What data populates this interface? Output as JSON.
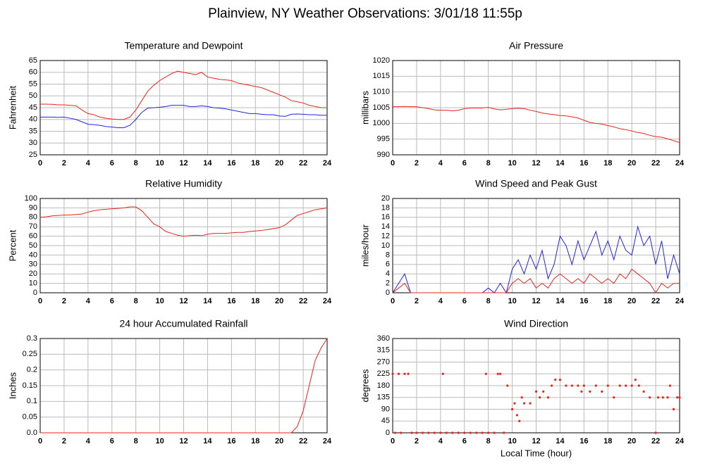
{
  "title": "Plainview, NY Weather Observations: 3/01/18 11:55p",
  "chart_data": [
    {
      "type": "line",
      "title": "Temperature and Dewpoint",
      "y_label": "Fahrenheit",
      "x": [
        0,
        0.5,
        1,
        1.5,
        2,
        2.5,
        3,
        3.5,
        4,
        4.5,
        5,
        5.5,
        6,
        6.5,
        7,
        7.5,
        8,
        8.5,
        9,
        9.5,
        10,
        10.5,
        11,
        11.5,
        12,
        12.5,
        13,
        13.5,
        14,
        14.5,
        15,
        15.5,
        16,
        16.5,
        17,
        17.5,
        18,
        18.5,
        19,
        19.5,
        20,
        20.5,
        21,
        21.5,
        22,
        22.5,
        23,
        23.5,
        24
      ],
      "series": [
        {
          "color": "#e8241c",
          "values": [
            46.5,
            46.5,
            46.4,
            46.2,
            46.2,
            46,
            45.8,
            44,
            42.5,
            42,
            41,
            40.5,
            40.2,
            40,
            40,
            41,
            44,
            48,
            52,
            54.5,
            56.5,
            58,
            59.5,
            60.5,
            60,
            59.5,
            59,
            60,
            58,
            57.5,
            57,
            56.8,
            56.5,
            55.5,
            55,
            54.5,
            54,
            53.5,
            52.5,
            51.5,
            50.5,
            49.5,
            48,
            47.5,
            47,
            46,
            45.5,
            45,
            45
          ]
        },
        {
          "color": "#2424d8",
          "values": [
            41,
            41,
            41,
            40.9,
            41,
            40.5,
            40,
            39,
            38,
            37.8,
            37.5,
            37,
            36.8,
            36.5,
            36.5,
            37.5,
            40,
            43,
            44.8,
            45,
            45.2,
            45.5,
            46,
            46,
            46,
            45.5,
            45.5,
            45.8,
            45.5,
            45,
            44.8,
            44.5,
            44,
            43.5,
            43,
            42.5,
            42.5,
            42.2,
            42,
            42,
            41.5,
            41.3,
            42.2,
            42.3,
            42.2,
            42,
            42,
            41.8,
            41.8
          ]
        }
      ],
      "xlim": [
        0,
        24
      ],
      "xticks": [
        0,
        2,
        4,
        6,
        8,
        10,
        12,
        14,
        16,
        18,
        20,
        22,
        24
      ],
      "ylim": [
        25,
        65
      ],
      "yticks": [
        25,
        30,
        35,
        40,
        45,
        50,
        55,
        60,
        65
      ],
      "grid": true
    },
    {
      "type": "line",
      "title": "Air Pressure",
      "y_label": "millibars",
      "x": [
        0,
        0.5,
        1,
        1.5,
        2,
        2.5,
        3,
        3.5,
        4,
        4.5,
        5,
        5.5,
        6,
        6.5,
        7,
        7.5,
        8,
        8.5,
        9,
        9.5,
        10,
        10.5,
        11,
        11.5,
        12,
        12.5,
        13,
        13.5,
        14,
        14.5,
        15,
        15.5,
        16,
        16.5,
        17,
        17.5,
        18,
        18.5,
        19,
        19.5,
        20,
        20.5,
        21,
        21.5,
        22,
        22.5,
        23,
        23.5,
        24
      ],
      "series": [
        {
          "color": "#e8241c",
          "values": [
            1005.3,
            1005.3,
            1005.4,
            1005.3,
            1005.3,
            1005,
            1004.7,
            1004.3,
            1004.2,
            1004.2,
            1004,
            1004.2,
            1004.7,
            1004.9,
            1004.9,
            1004.9,
            1005.1,
            1004.6,
            1004.3,
            1004.5,
            1004.7,
            1004.8,
            1004.7,
            1004.2,
            1003.8,
            1003.3,
            1003,
            1002.8,
            1002.5,
            1002.4,
            1002.1,
            1001.7,
            1001,
            1000.3,
            1000,
            999.8,
            999.3,
            998.9,
            998.3,
            998,
            997.6,
            997.1,
            996.8,
            996.2,
            995.8,
            995.6,
            995.1,
            994.5,
            993.9
          ]
        }
      ],
      "xlim": [
        0,
        24
      ],
      "xticks": [
        0,
        2,
        4,
        6,
        8,
        10,
        12,
        14,
        16,
        18,
        20,
        22,
        24
      ],
      "ylim": [
        990,
        1020
      ],
      "yticks": [
        990,
        995,
        1000,
        1005,
        1010,
        1015,
        1020
      ],
      "grid": true
    },
    {
      "type": "line",
      "title": "Relative Humidity",
      "y_label": "Percent",
      "x": [
        0,
        0.5,
        1,
        1.5,
        2,
        2.5,
        3,
        3.5,
        4,
        4.5,
        5,
        5.5,
        6,
        6.5,
        7,
        7.5,
        8,
        8.5,
        9,
        9.5,
        10,
        10.5,
        11,
        11.5,
        12,
        12.5,
        13,
        13.5,
        14,
        14.5,
        15,
        15.5,
        16,
        16.5,
        17,
        17.5,
        18,
        18.5,
        19,
        19.5,
        20,
        20.5,
        21,
        21.5,
        22,
        22.5,
        23,
        23.5,
        24
      ],
      "series": [
        {
          "color": "#e8241c",
          "values": [
            80,
            80.5,
            81.5,
            82,
            82.5,
            82.5,
            83,
            83.5,
            85.5,
            87,
            88,
            88.5,
            89,
            89.5,
            90,
            91,
            91,
            87,
            80,
            73,
            70,
            65,
            63,
            61,
            60,
            60.5,
            61,
            60.5,
            62,
            63,
            63,
            63,
            63.5,
            64,
            64,
            65,
            65.5,
            66,
            67,
            68,
            69,
            72,
            77,
            82,
            84,
            86,
            88,
            89,
            90
          ]
        }
      ],
      "xlim": [
        0,
        24
      ],
      "xticks": [
        0,
        2,
        4,
        6,
        8,
        10,
        12,
        14,
        16,
        18,
        20,
        22,
        24
      ],
      "ylim": [
        0,
        100
      ],
      "yticks": [
        0,
        10,
        20,
        30,
        40,
        50,
        60,
        70,
        80,
        90,
        100
      ],
      "grid": true
    },
    {
      "type": "line",
      "title": "Wind Speed and Peak Gust",
      "y_label": "miles/hour",
      "x": [
        0,
        0.5,
        1,
        1.5,
        2,
        2.5,
        3,
        3.5,
        4,
        4.5,
        5,
        5.5,
        6,
        6.5,
        7,
        7.5,
        8,
        8.5,
        9,
        9.5,
        10,
        10.5,
        11,
        11.5,
        12,
        12.5,
        13,
        13.5,
        14,
        14.5,
        15,
        15.5,
        16,
        16.5,
        17,
        17.5,
        18,
        18.5,
        19,
        19.5,
        20,
        20.5,
        21,
        21.5,
        22,
        22.5,
        23,
        23.5,
        24
      ],
      "series": [
        {
          "color": "#2424d8",
          "values": [
            0,
            2,
            4,
            0,
            0,
            0,
            0,
            0,
            0,
            0,
            0,
            0,
            0,
            0,
            0,
            0,
            1,
            0,
            2,
            0,
            5,
            7,
            4,
            8,
            5,
            9,
            3,
            6,
            12,
            10,
            6,
            11,
            7,
            10,
            13,
            8,
            11,
            7,
            12,
            9,
            8,
            14,
            10,
            12,
            6,
            11,
            3,
            8,
            4
          ]
        },
        {
          "color": "#e8241c",
          "values": [
            0,
            1,
            2,
            0,
            0,
            0,
            0,
            0,
            0,
            0,
            0,
            0,
            0,
            0,
            0,
            0,
            0,
            0,
            0,
            0,
            2,
            3,
            2,
            3,
            1,
            2,
            1,
            3,
            4,
            3,
            2,
            3,
            2,
            4,
            3,
            2,
            3,
            2,
            4,
            3,
            5,
            4,
            3,
            2,
            0,
            2,
            1,
            2,
            2
          ]
        }
      ],
      "xlim": [
        0,
        24
      ],
      "xticks": [
        0,
        2,
        4,
        6,
        8,
        10,
        12,
        14,
        16,
        18,
        20,
        22,
        24
      ],
      "ylim": [
        0,
        20
      ],
      "yticks": [
        0,
        2,
        4,
        6,
        8,
        10,
        12,
        14,
        16,
        18,
        20
      ],
      "grid": true
    },
    {
      "type": "line",
      "title": "24 hour Accumulated Rainfall",
      "y_label": "Inches",
      "x": [
        0,
        0.5,
        1,
        1.5,
        2,
        2.5,
        3,
        3.5,
        4,
        4.5,
        5,
        5.5,
        6,
        6.5,
        7,
        7.5,
        8,
        8.5,
        9,
        9.5,
        10,
        10.5,
        11,
        11.5,
        12,
        12.5,
        13,
        13.5,
        14,
        14.5,
        15,
        15.5,
        16,
        16.5,
        17,
        17.5,
        18,
        18.5,
        19,
        19.5,
        20,
        20.5,
        21,
        21.5,
        22,
        22.5,
        23,
        23.5,
        24
      ],
      "series": [
        {
          "color": "#e8241c",
          "values": [
            0,
            0,
            0,
            0,
            0,
            0,
            0,
            0,
            0,
            0,
            0,
            0,
            0,
            0,
            0,
            0,
            0,
            0,
            0,
            0,
            0,
            0,
            0,
            0,
            0,
            0,
            0,
            0,
            0,
            0,
            0,
            0,
            0,
            0,
            0,
            0,
            0,
            0,
            0,
            0,
            0,
            0,
            0,
            0.02,
            0.07,
            0.15,
            0.23,
            0.27,
            0.3
          ]
        }
      ],
      "xlim": [
        0,
        24
      ],
      "xticks": [
        0,
        2,
        4,
        6,
        8,
        10,
        12,
        14,
        16,
        18,
        20,
        22,
        24
      ],
      "ylim": [
        0,
        0.3
      ],
      "yticks": [
        {
          "value": 0,
          "label": "0.0"
        },
        0.05,
        0.1,
        0.15,
        0.2,
        0.25,
        0.3
      ],
      "grid": true
    },
    {
      "type": "scatter",
      "title": "Wind Direction",
      "y_label": "degrees",
      "x_label": "Local Time (hour)",
      "series": [
        {
          "color": "#e8241c",
          "x": [
            0,
            0.2,
            0.5,
            0.7,
            1,
            1.3,
            1.6,
            2,
            2.5,
            3,
            3.5,
            4,
            4.2,
            4.5,
            5,
            5.5,
            6,
            6.5,
            7,
            7.5,
            7.8,
            8,
            8.5,
            8.8,
            9,
            9.3,
            9.6,
            10,
            10.2,
            10.4,
            10.6,
            10.8,
            11,
            11.5,
            12,
            12.3,
            12.6,
            13,
            13.3,
            13.6,
            14,
            14.5,
            15,
            15.5,
            15.8,
            16,
            16.5,
            17,
            17.5,
            18,
            18.5,
            19,
            19.5,
            20,
            20.3,
            20.6,
            21,
            21.5,
            22,
            22.2,
            22.6,
            23,
            23.2,
            23.5,
            23.8,
            24
          ],
          "values": [
            225,
            0,
            225,
            0,
            225,
            225,
            0,
            0,
            0,
            0,
            0,
            0,
            225,
            0,
            0,
            0,
            0,
            0,
            0,
            0,
            225,
            0,
            0,
            225,
            225,
            0,
            180,
            90,
            112.5,
            67.5,
            45,
            135,
            112.5,
            112.5,
            157.5,
            135,
            157.5,
            135,
            180,
            202.5,
            202.5,
            180,
            180,
            180,
            157.5,
            180,
            157.5,
            180,
            157.5,
            180,
            135,
            180,
            180,
            180,
            202.5,
            180,
            157.5,
            135,
            0,
            135,
            135,
            135,
            180,
            90,
            135,
            135
          ]
        }
      ],
      "xlim": [
        0,
        24
      ],
      "xticks": [
        0,
        2,
        4,
        6,
        8,
        10,
        12,
        14,
        16,
        18,
        20,
        22,
        24
      ],
      "ylim": [
        0,
        360
      ],
      "yticks": [
        0,
        45,
        90,
        135,
        180,
        225,
        270,
        315,
        360
      ],
      "grid": true
    }
  ]
}
